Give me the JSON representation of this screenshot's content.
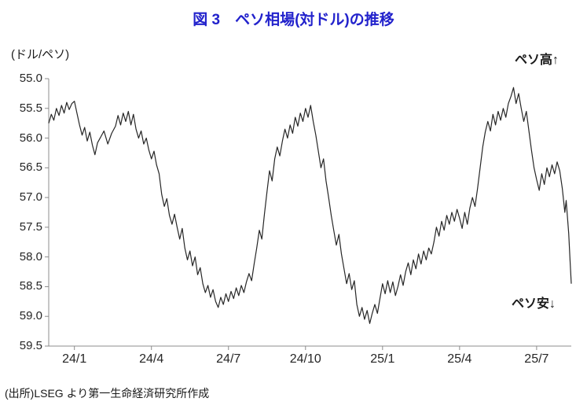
{
  "title": "図 3　ペソ相場(対ドル)の推移",
  "unit_label": "(ドル/ペソ)",
  "annotations": {
    "high": "ペソ高↑",
    "low": "ペソ安↓"
  },
  "source": "(出所)LSEG より第一生命経済研究所作成",
  "colors": {
    "title_blue": "#2222CC",
    "line_black": "#262626",
    "axis_gray": "#8C8C8C",
    "tick_text": "#262626"
  },
  "chart_data": {
    "type": "line",
    "title": "図 3 ペソ相場(対ドル)の推移",
    "ylabel": "ドル/ペソ (pesos per US dollar)",
    "xlabel": "",
    "grid": false,
    "legend": "none",
    "y_axis": {
      "min": 55.0,
      "max": 59.5,
      "inverted": true,
      "tick_step": 0.5,
      "tick_labels": [
        "55.0",
        "55.5",
        "56.0",
        "56.5",
        "57.0",
        "57.5",
        "58.0",
        "58.5",
        "59.0",
        "59.5"
      ]
    },
    "x_axis": {
      "tick_labels": [
        "24/1",
        "24/4",
        "24/7",
        "24/10",
        "25/1",
        "25/4",
        "25/7"
      ],
      "tick_months": [
        0,
        3,
        6,
        9,
        12,
        15,
        18
      ],
      "domain_months": [
        -1.0,
        19.35
      ],
      "points_x_unit": "months from 2024/1 tick (negative = Dec 2023)"
    },
    "series": [
      {
        "name": "ペソ相場(対ドル)",
        "points": [
          [
            -1.0,
            55.75
          ],
          [
            -0.9,
            55.6
          ],
          [
            -0.8,
            55.7
          ],
          [
            -0.7,
            55.5
          ],
          [
            -0.6,
            55.62
          ],
          [
            -0.5,
            55.45
          ],
          [
            -0.4,
            55.58
          ],
          [
            -0.3,
            55.4
          ],
          [
            -0.2,
            55.52
          ],
          [
            -0.1,
            55.42
          ],
          [
            0.0,
            55.38
          ],
          [
            0.1,
            55.58
          ],
          [
            0.2,
            55.78
          ],
          [
            0.3,
            55.95
          ],
          [
            0.4,
            55.82
          ],
          [
            0.5,
            56.05
          ],
          [
            0.6,
            55.9
          ],
          [
            0.7,
            56.12
          ],
          [
            0.8,
            56.28
          ],
          [
            0.9,
            56.08
          ],
          [
            1.0,
            56.0
          ],
          [
            1.15,
            55.88
          ],
          [
            1.3,
            56.1
          ],
          [
            1.45,
            55.92
          ],
          [
            1.6,
            55.8
          ],
          [
            1.7,
            55.62
          ],
          [
            1.8,
            55.78
          ],
          [
            1.9,
            55.58
          ],
          [
            2.0,
            55.72
          ],
          [
            2.1,
            55.55
          ],
          [
            2.2,
            55.78
          ],
          [
            2.3,
            55.6
          ],
          [
            2.4,
            55.85
          ],
          [
            2.5,
            56.0
          ],
          [
            2.6,
            55.88
          ],
          [
            2.7,
            56.1
          ],
          [
            2.8,
            56.0
          ],
          [
            2.9,
            56.2
          ],
          [
            3.0,
            56.35
          ],
          [
            3.1,
            56.22
          ],
          [
            3.2,
            56.45
          ],
          [
            3.3,
            56.6
          ],
          [
            3.4,
            56.95
          ],
          [
            3.5,
            57.15
          ],
          [
            3.6,
            57.02
          ],
          [
            3.7,
            57.3
          ],
          [
            3.8,
            57.45
          ],
          [
            3.9,
            57.28
          ],
          [
            4.0,
            57.5
          ],
          [
            4.1,
            57.7
          ],
          [
            4.2,
            57.52
          ],
          [
            4.3,
            57.85
          ],
          [
            4.4,
            58.05
          ],
          [
            4.5,
            57.9
          ],
          [
            4.6,
            58.15
          ],
          [
            4.7,
            58.0
          ],
          [
            4.8,
            58.3
          ],
          [
            4.9,
            58.18
          ],
          [
            5.0,
            58.45
          ],
          [
            5.1,
            58.6
          ],
          [
            5.2,
            58.48
          ],
          [
            5.3,
            58.68
          ],
          [
            5.4,
            58.55
          ],
          [
            5.5,
            58.75
          ],
          [
            5.6,
            58.85
          ],
          [
            5.7,
            58.68
          ],
          [
            5.8,
            58.8
          ],
          [
            5.9,
            58.62
          ],
          [
            6.0,
            58.75
          ],
          [
            6.1,
            58.58
          ],
          [
            6.2,
            58.7
          ],
          [
            6.3,
            58.52
          ],
          [
            6.4,
            58.65
          ],
          [
            6.5,
            58.48
          ],
          [
            6.6,
            58.6
          ],
          [
            6.7,
            58.42
          ],
          [
            6.8,
            58.28
          ],
          [
            6.9,
            58.4
          ],
          [
            7.0,
            58.12
          ],
          [
            7.1,
            57.85
          ],
          [
            7.2,
            57.55
          ],
          [
            7.3,
            57.7
          ],
          [
            7.4,
            57.28
          ],
          [
            7.5,
            56.9
          ],
          [
            7.6,
            56.55
          ],
          [
            7.7,
            56.72
          ],
          [
            7.8,
            56.35
          ],
          [
            7.9,
            56.15
          ],
          [
            8.0,
            56.3
          ],
          [
            8.1,
            56.05
          ],
          [
            8.2,
            55.85
          ],
          [
            8.3,
            56.0
          ],
          [
            8.4,
            55.78
          ],
          [
            8.5,
            55.92
          ],
          [
            8.6,
            55.65
          ],
          [
            8.7,
            55.8
          ],
          [
            8.8,
            55.58
          ],
          [
            8.9,
            55.72
          ],
          [
            9.0,
            55.5
          ],
          [
            9.1,
            55.65
          ],
          [
            9.2,
            55.45
          ],
          [
            9.3,
            55.72
          ],
          [
            9.4,
            55.95
          ],
          [
            9.5,
            56.22
          ],
          [
            9.6,
            56.5
          ],
          [
            9.7,
            56.35
          ],
          [
            9.8,
            56.72
          ],
          [
            9.9,
            57.0
          ],
          [
            10.0,
            57.3
          ],
          [
            10.1,
            57.55
          ],
          [
            10.2,
            57.8
          ],
          [
            10.3,
            57.62
          ],
          [
            10.4,
            57.95
          ],
          [
            10.5,
            58.2
          ],
          [
            10.6,
            58.45
          ],
          [
            10.7,
            58.28
          ],
          [
            10.8,
            58.55
          ],
          [
            10.9,
            58.4
          ],
          [
            11.0,
            58.8
          ],
          [
            11.1,
            59.0
          ],
          [
            11.2,
            58.85
          ],
          [
            11.3,
            59.05
          ],
          [
            11.4,
            58.9
          ],
          [
            11.5,
            59.12
          ],
          [
            11.6,
            58.95
          ],
          [
            11.7,
            58.8
          ],
          [
            11.8,
            58.95
          ],
          [
            11.9,
            58.7
          ],
          [
            12.0,
            58.45
          ],
          [
            12.1,
            58.62
          ],
          [
            12.2,
            58.4
          ],
          [
            12.3,
            58.6
          ],
          [
            12.4,
            58.42
          ],
          [
            12.5,
            58.65
          ],
          [
            12.6,
            58.5
          ],
          [
            12.7,
            58.3
          ],
          [
            12.8,
            58.48
          ],
          [
            12.9,
            58.25
          ],
          [
            13.0,
            58.1
          ],
          [
            13.1,
            58.3
          ],
          [
            13.2,
            58.05
          ],
          [
            13.3,
            58.2
          ],
          [
            13.4,
            57.95
          ],
          [
            13.5,
            58.12
          ],
          [
            13.6,
            57.9
          ],
          [
            13.7,
            58.05
          ],
          [
            13.8,
            57.85
          ],
          [
            13.9,
            57.95
          ],
          [
            14.0,
            57.75
          ],
          [
            14.1,
            57.5
          ],
          [
            14.2,
            57.65
          ],
          [
            14.3,
            57.4
          ],
          [
            14.4,
            57.55
          ],
          [
            14.5,
            57.3
          ],
          [
            14.6,
            57.45
          ],
          [
            14.7,
            57.25
          ],
          [
            14.8,
            57.4
          ],
          [
            14.9,
            57.2
          ],
          [
            15.0,
            57.35
          ],
          [
            15.1,
            57.52
          ],
          [
            15.2,
            57.25
          ],
          [
            15.3,
            57.45
          ],
          [
            15.4,
            57.18
          ],
          [
            15.5,
            57.0
          ],
          [
            15.6,
            57.15
          ],
          [
            15.7,
            56.85
          ],
          [
            15.8,
            56.5
          ],
          [
            15.9,
            56.15
          ],
          [
            16.0,
            55.9
          ],
          [
            16.1,
            55.72
          ],
          [
            16.2,
            55.88
          ],
          [
            16.3,
            55.6
          ],
          [
            16.4,
            55.78
          ],
          [
            16.5,
            55.55
          ],
          [
            16.6,
            55.7
          ],
          [
            16.7,
            55.5
          ],
          [
            16.8,
            55.65
          ],
          [
            16.9,
            55.42
          ],
          [
            17.0,
            55.3
          ],
          [
            17.1,
            55.15
          ],
          [
            17.2,
            55.42
          ],
          [
            17.3,
            55.25
          ],
          [
            17.4,
            55.5
          ],
          [
            17.5,
            55.72
          ],
          [
            17.6,
            55.55
          ],
          [
            17.7,
            55.88
          ],
          [
            17.8,
            56.2
          ],
          [
            17.9,
            56.5
          ],
          [
            18.0,
            56.7
          ],
          [
            18.1,
            56.88
          ],
          [
            18.2,
            56.6
          ],
          [
            18.3,
            56.78
          ],
          [
            18.4,
            56.5
          ],
          [
            18.5,
            56.65
          ],
          [
            18.6,
            56.45
          ],
          [
            18.7,
            56.6
          ],
          [
            18.8,
            56.4
          ],
          [
            18.9,
            56.55
          ],
          [
            19.0,
            56.85
          ],
          [
            19.1,
            57.25
          ],
          [
            19.15,
            57.05
          ],
          [
            19.25,
            57.6
          ],
          [
            19.3,
            58.05
          ],
          [
            19.35,
            58.45
          ]
        ]
      }
    ]
  }
}
